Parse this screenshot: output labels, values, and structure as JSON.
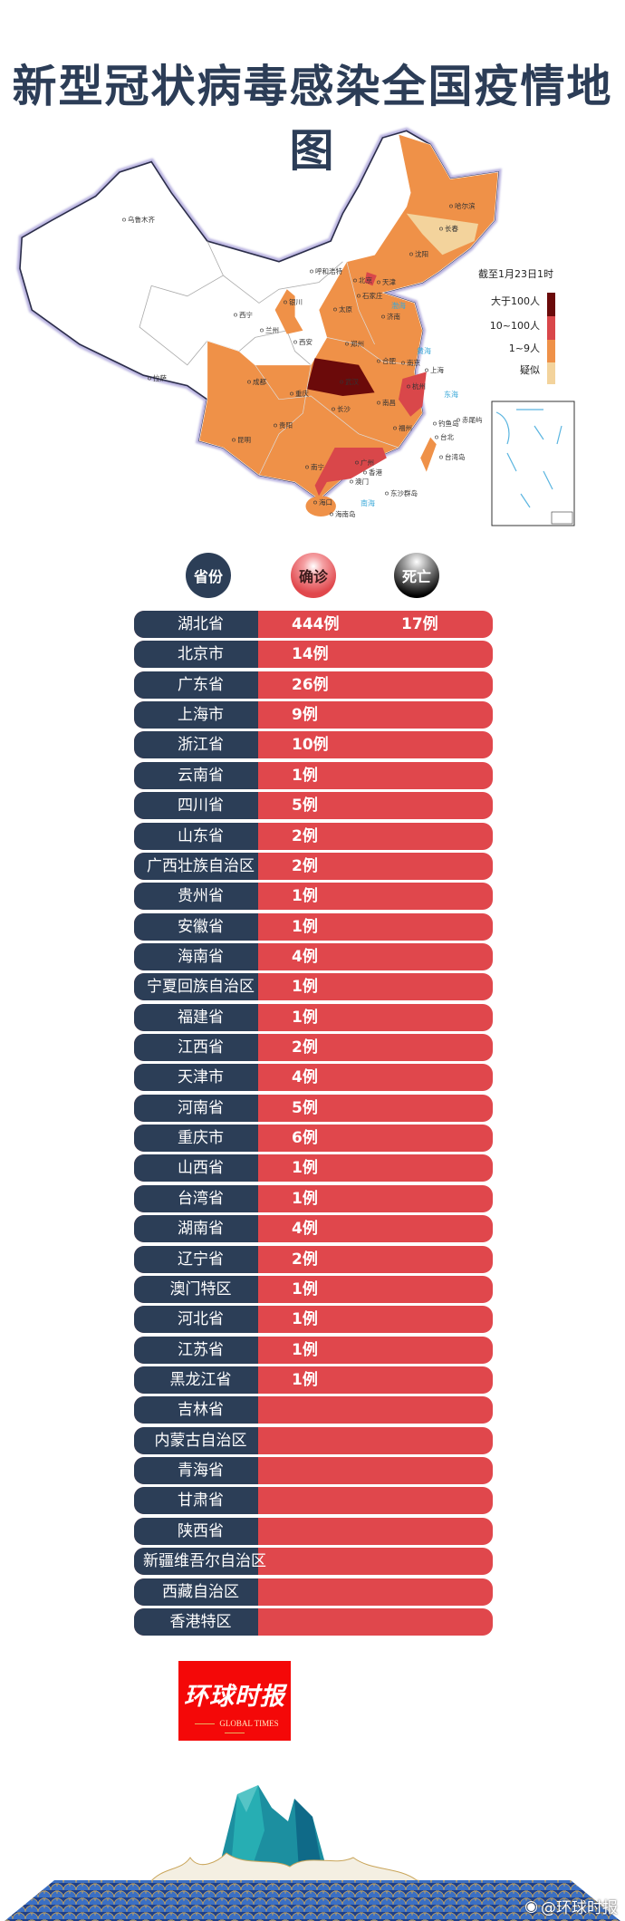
{
  "title": "新型冠状病毒感染全国疫情地图",
  "map": {
    "timestamp": "截至1月23日1时",
    "legend": [
      {
        "label": "大于100人",
        "color": "#6b0a0a"
      },
      {
        "label": "10~100人",
        "color": "#d9474a"
      },
      {
        "label": "1~9人",
        "color": "#ef9148"
      },
      {
        "label": "疑似",
        "color": "#f3d39c"
      }
    ],
    "cities": [
      "乌鲁木齐",
      "哈尔滨",
      "长春",
      "沈阳",
      "呼和浩特",
      "北京",
      "天津",
      "石家庄",
      "银川",
      "太原",
      "济南",
      "西宁",
      "兰州",
      "西安",
      "郑州",
      "合肥",
      "南京",
      "上海",
      "拉萨",
      "成都",
      "武汉",
      "杭州",
      "重庆",
      "南昌",
      "长沙",
      "贵阳",
      "福州",
      "昆明",
      "台北",
      "钓鱼岛",
      "赤尾屿",
      "台湾岛",
      "广州",
      "香港",
      "南宁",
      "澳门",
      "海口",
      "东沙群岛",
      "海南岛"
    ],
    "seas": [
      "渤海",
      "黄海",
      "东海",
      "南海"
    ]
  },
  "table": {
    "headers": {
      "province": "省份",
      "confirmed": "确诊",
      "deaths": "死亡"
    },
    "rows": [
      {
        "province": "湖北省",
        "confirmed": "444例",
        "deaths": "17例"
      },
      {
        "province": "北京市",
        "confirmed": "14例"
      },
      {
        "province": "广东省",
        "confirmed": "26例"
      },
      {
        "province": "上海市",
        "confirmed": "9例"
      },
      {
        "province": "浙江省",
        "confirmed": "10例"
      },
      {
        "province": "云南省",
        "confirmed": "1例"
      },
      {
        "province": "四川省",
        "confirmed": "5例"
      },
      {
        "province": "山东省",
        "confirmed": "2例"
      },
      {
        "province": "广西壮族自治区",
        "confirmed": "2例"
      },
      {
        "province": "贵州省",
        "confirmed": "1例"
      },
      {
        "province": "安徽省",
        "confirmed": "1例"
      },
      {
        "province": "海南省",
        "confirmed": "4例"
      },
      {
        "province": "宁夏回族自治区",
        "confirmed": "1例"
      },
      {
        "province": "福建省",
        "confirmed": "1例"
      },
      {
        "province": "江西省",
        "confirmed": "2例"
      },
      {
        "province": "天津市",
        "confirmed": "4例"
      },
      {
        "province": "河南省",
        "confirmed": "5例"
      },
      {
        "province": "重庆市",
        "confirmed": "6例"
      },
      {
        "province": "山西省",
        "confirmed": "1例"
      },
      {
        "province": "台湾省",
        "confirmed": "1例"
      },
      {
        "province": "湖南省",
        "confirmed": "4例"
      },
      {
        "province": "辽宁省",
        "confirmed": "2例"
      },
      {
        "province": "澳门特区",
        "confirmed": "1例"
      },
      {
        "province": "河北省",
        "confirmed": "1例"
      },
      {
        "province": "江苏省",
        "confirmed": "1例"
      },
      {
        "province": "黑龙江省",
        "confirmed": "1例"
      },
      {
        "province": "吉林省"
      },
      {
        "province": "内蒙古自治区"
      },
      {
        "province": "青海省"
      },
      {
        "province": "甘肃省"
      },
      {
        "province": "陕西省"
      },
      {
        "province": "新疆维吾尔自治区"
      },
      {
        "province": "西藏自治区"
      },
      {
        "province": "香港特区"
      }
    ]
  },
  "colors": {
    "navy": "#2c3e57",
    "red": "#e0474c",
    "logo_red": "#f40808"
  },
  "logo": {
    "cn": "环球时报",
    "en": "GLOBAL TIMES"
  },
  "watermark": "@环球时报"
}
